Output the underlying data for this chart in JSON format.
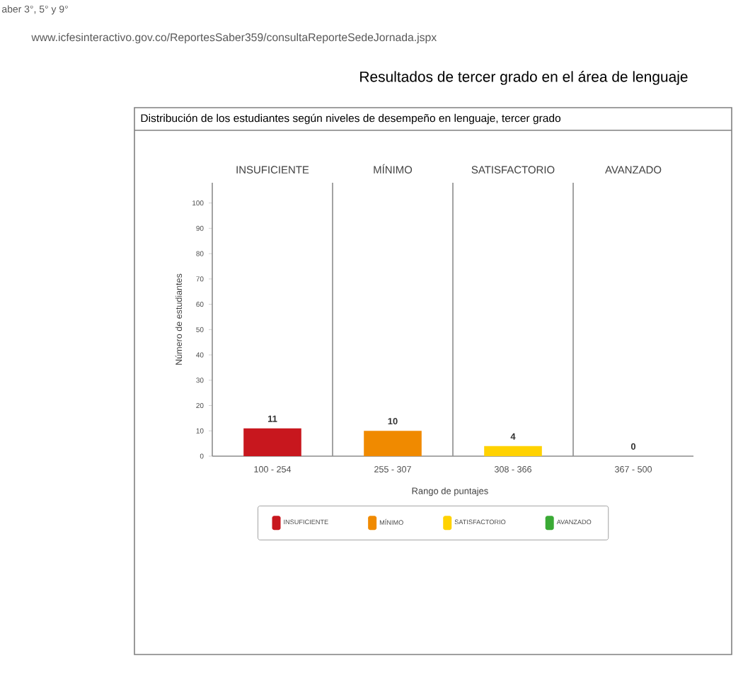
{
  "chart_data": {
    "type": "bar",
    "title": "Resultados de tercer grado en el área de lenguaje",
    "subtitle": "Distribución de los estudiantes según niveles de desempeño en lenguaje, tercer grado",
    "xlabel": "Rango de puntajes",
    "ylabel": "Número de estudiantes",
    "categories": [
      "100 - 254",
      "255 - 307",
      "308 - 366",
      "367 - 500"
    ],
    "series": [
      {
        "name": "INSUFICIENTE",
        "color": "#c8171e",
        "values": [
          11,
          null,
          null,
          null
        ]
      },
      {
        "name": "MÍNIMO",
        "color": "#f08a00",
        "values": [
          null,
          10,
          null,
          null
        ]
      },
      {
        "name": "SATISFACTORIO",
        "color": "#ffd200",
        "values": [
          null,
          null,
          4,
          null
        ]
      },
      {
        "name": "AVANZADO",
        "color": "#3aaa35",
        "values": [
          null,
          null,
          null,
          0
        ]
      }
    ],
    "ylim": [
      0,
      108
    ],
    "yticks": [
      0,
      10,
      20,
      30,
      40,
      50,
      60,
      70,
      80,
      90,
      100
    ],
    "grid": "x",
    "legend": "bottom",
    "data_labels": true,
    "annotations": [
      "aber 3°, 5° y 9°",
      "www.icfesinteractivo.gov.co/ReportesSaber359/consultaReporteSedeJornada.jspx"
    ]
  }
}
